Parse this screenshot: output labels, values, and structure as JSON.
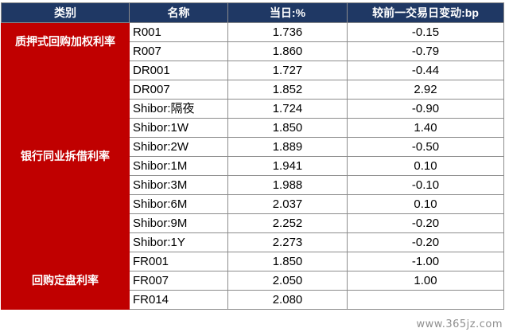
{
  "header": [
    "类别",
    "名称",
    "当日:%",
    "较前一交易日变动:bp"
  ],
  "groups": [
    {
      "category": "质押式回购加权利率",
      "rows": [
        {
          "name": "R001",
          "value": "1.736",
          "change": "-0.15"
        },
        {
          "name": "R007",
          "value": "1.860",
          "change": "-0.79"
        }
      ]
    },
    {
      "category": "银行同业拆借利率",
      "rows": [
        {
          "name": "DR001",
          "value": "1.727",
          "change": "-0.44"
        },
        {
          "name": "DR007",
          "value": "1.852",
          "change": "2.92"
        },
        {
          "name": "Shibor:隔夜",
          "value": "1.724",
          "change": "-0.90"
        },
        {
          "name": "Shibor:1W",
          "value": "1.850",
          "change": "1.40"
        },
        {
          "name": "Shibor:2W",
          "value": "1.889",
          "change": "-0.50"
        },
        {
          "name": "Shibor:1M",
          "value": "1.941",
          "change": "0.10"
        },
        {
          "name": "Shibor:3M",
          "value": "1.988",
          "change": "-0.10"
        },
        {
          "name": "Shibor:6M",
          "value": "2.037",
          "change": "0.10"
        },
        {
          "name": "Shibor:9M",
          "value": "2.252",
          "change": "-0.20"
        },
        {
          "name": "Shibor:1Y",
          "value": "2.273",
          "change": "-0.20"
        }
      ]
    },
    {
      "category": "回购定盘利率",
      "rows": [
        {
          "name": "FR001",
          "value": "1.850",
          "change": "-1.00"
        },
        {
          "name": "FR007",
          "value": "2.050",
          "change": "1.00"
        },
        {
          "name": "FR014",
          "value": "2.080",
          "change": ""
        }
      ]
    }
  ],
  "watermark": "www.365jz.com"
}
